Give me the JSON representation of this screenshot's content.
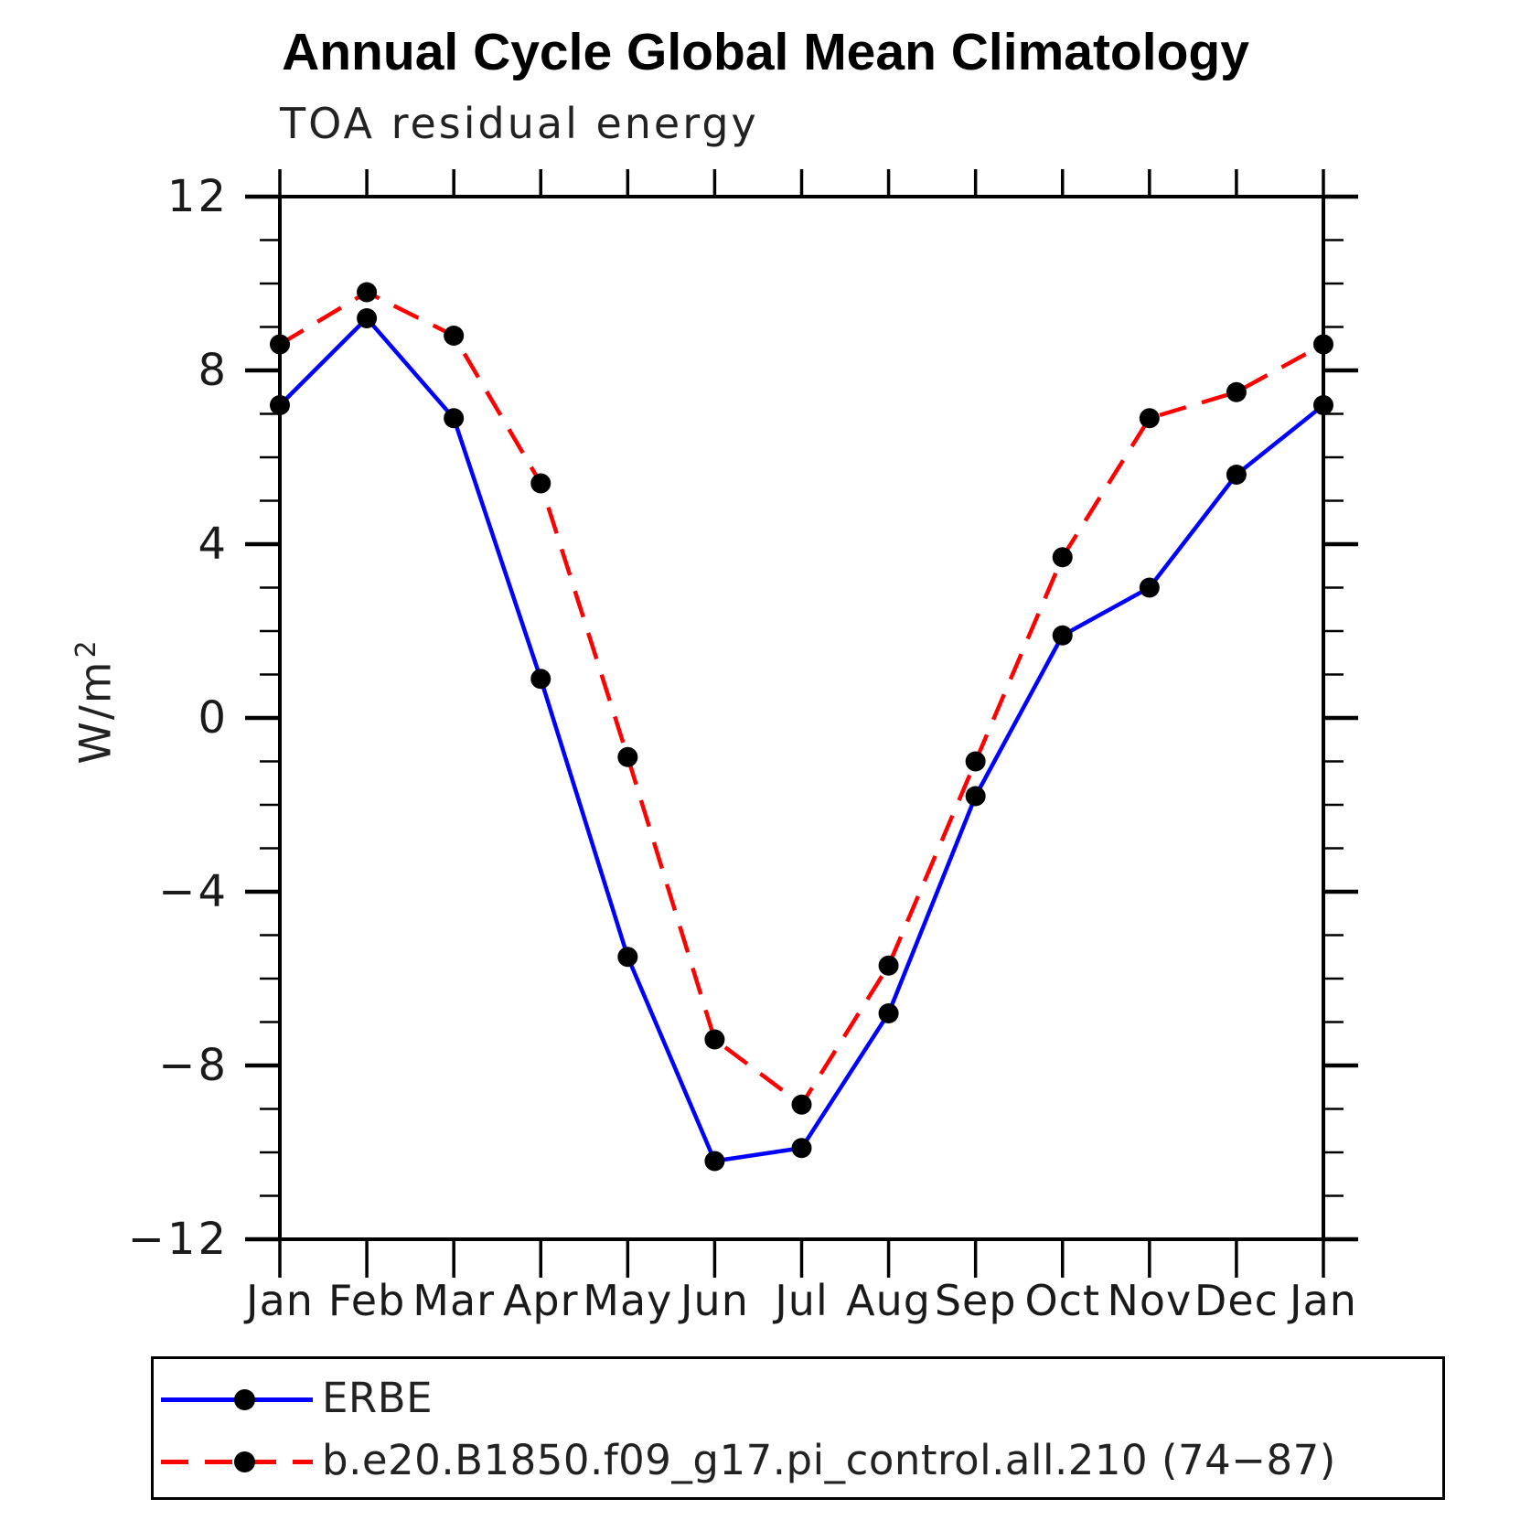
{
  "title": "Annual Cycle Global Mean Climatology",
  "chart_data": {
    "type": "line",
    "subtitle": "TOA residual energy",
    "ylabel": "W/m",
    "ylabel_sup": "2",
    "x_categories": [
      "Jan",
      "Feb",
      "Mar",
      "Apr",
      "May",
      "Jun",
      "Jul",
      "Aug",
      "Sep",
      "Oct",
      "Nov",
      "Dec",
      "Jan"
    ],
    "ylim": [
      -12,
      12
    ],
    "y_major_ticks": [
      {
        "v": 12,
        "label": "12"
      },
      {
        "v": 8,
        "label": "8"
      },
      {
        "v": 4,
        "label": "4"
      },
      {
        "v": 0,
        "label": "0"
      },
      {
        "v": -4,
        "label": "−4"
      },
      {
        "v": -8,
        "label": "−8"
      },
      {
        "v": -12,
        "label": "−12"
      }
    ],
    "y_minor_step": 1,
    "grid": false,
    "legend_position": "bottom",
    "axis_color": "#000000",
    "marker_color": "#000000",
    "series": [
      {
        "name": "ERBE",
        "color": "#0000ff",
        "style": "solid",
        "marker": "circle",
        "values": [
          7.2,
          9.2,
          6.9,
          0.9,
          -5.5,
          -10.2,
          -9.9,
          -6.8,
          -1.8,
          1.9,
          3.0,
          5.6,
          7.2
        ]
      },
      {
        "name": "b.e20.B1850.f09_g17.pi_control.all.210 (74−87)",
        "color": "#ff0000",
        "style": "dashed",
        "marker": "circle",
        "values": [
          8.6,
          9.8,
          8.8,
          5.4,
          -0.9,
          -7.4,
          -8.9,
          -5.7,
          -1.0,
          3.7,
          6.9,
          7.5,
          8.6
        ]
      }
    ]
  }
}
